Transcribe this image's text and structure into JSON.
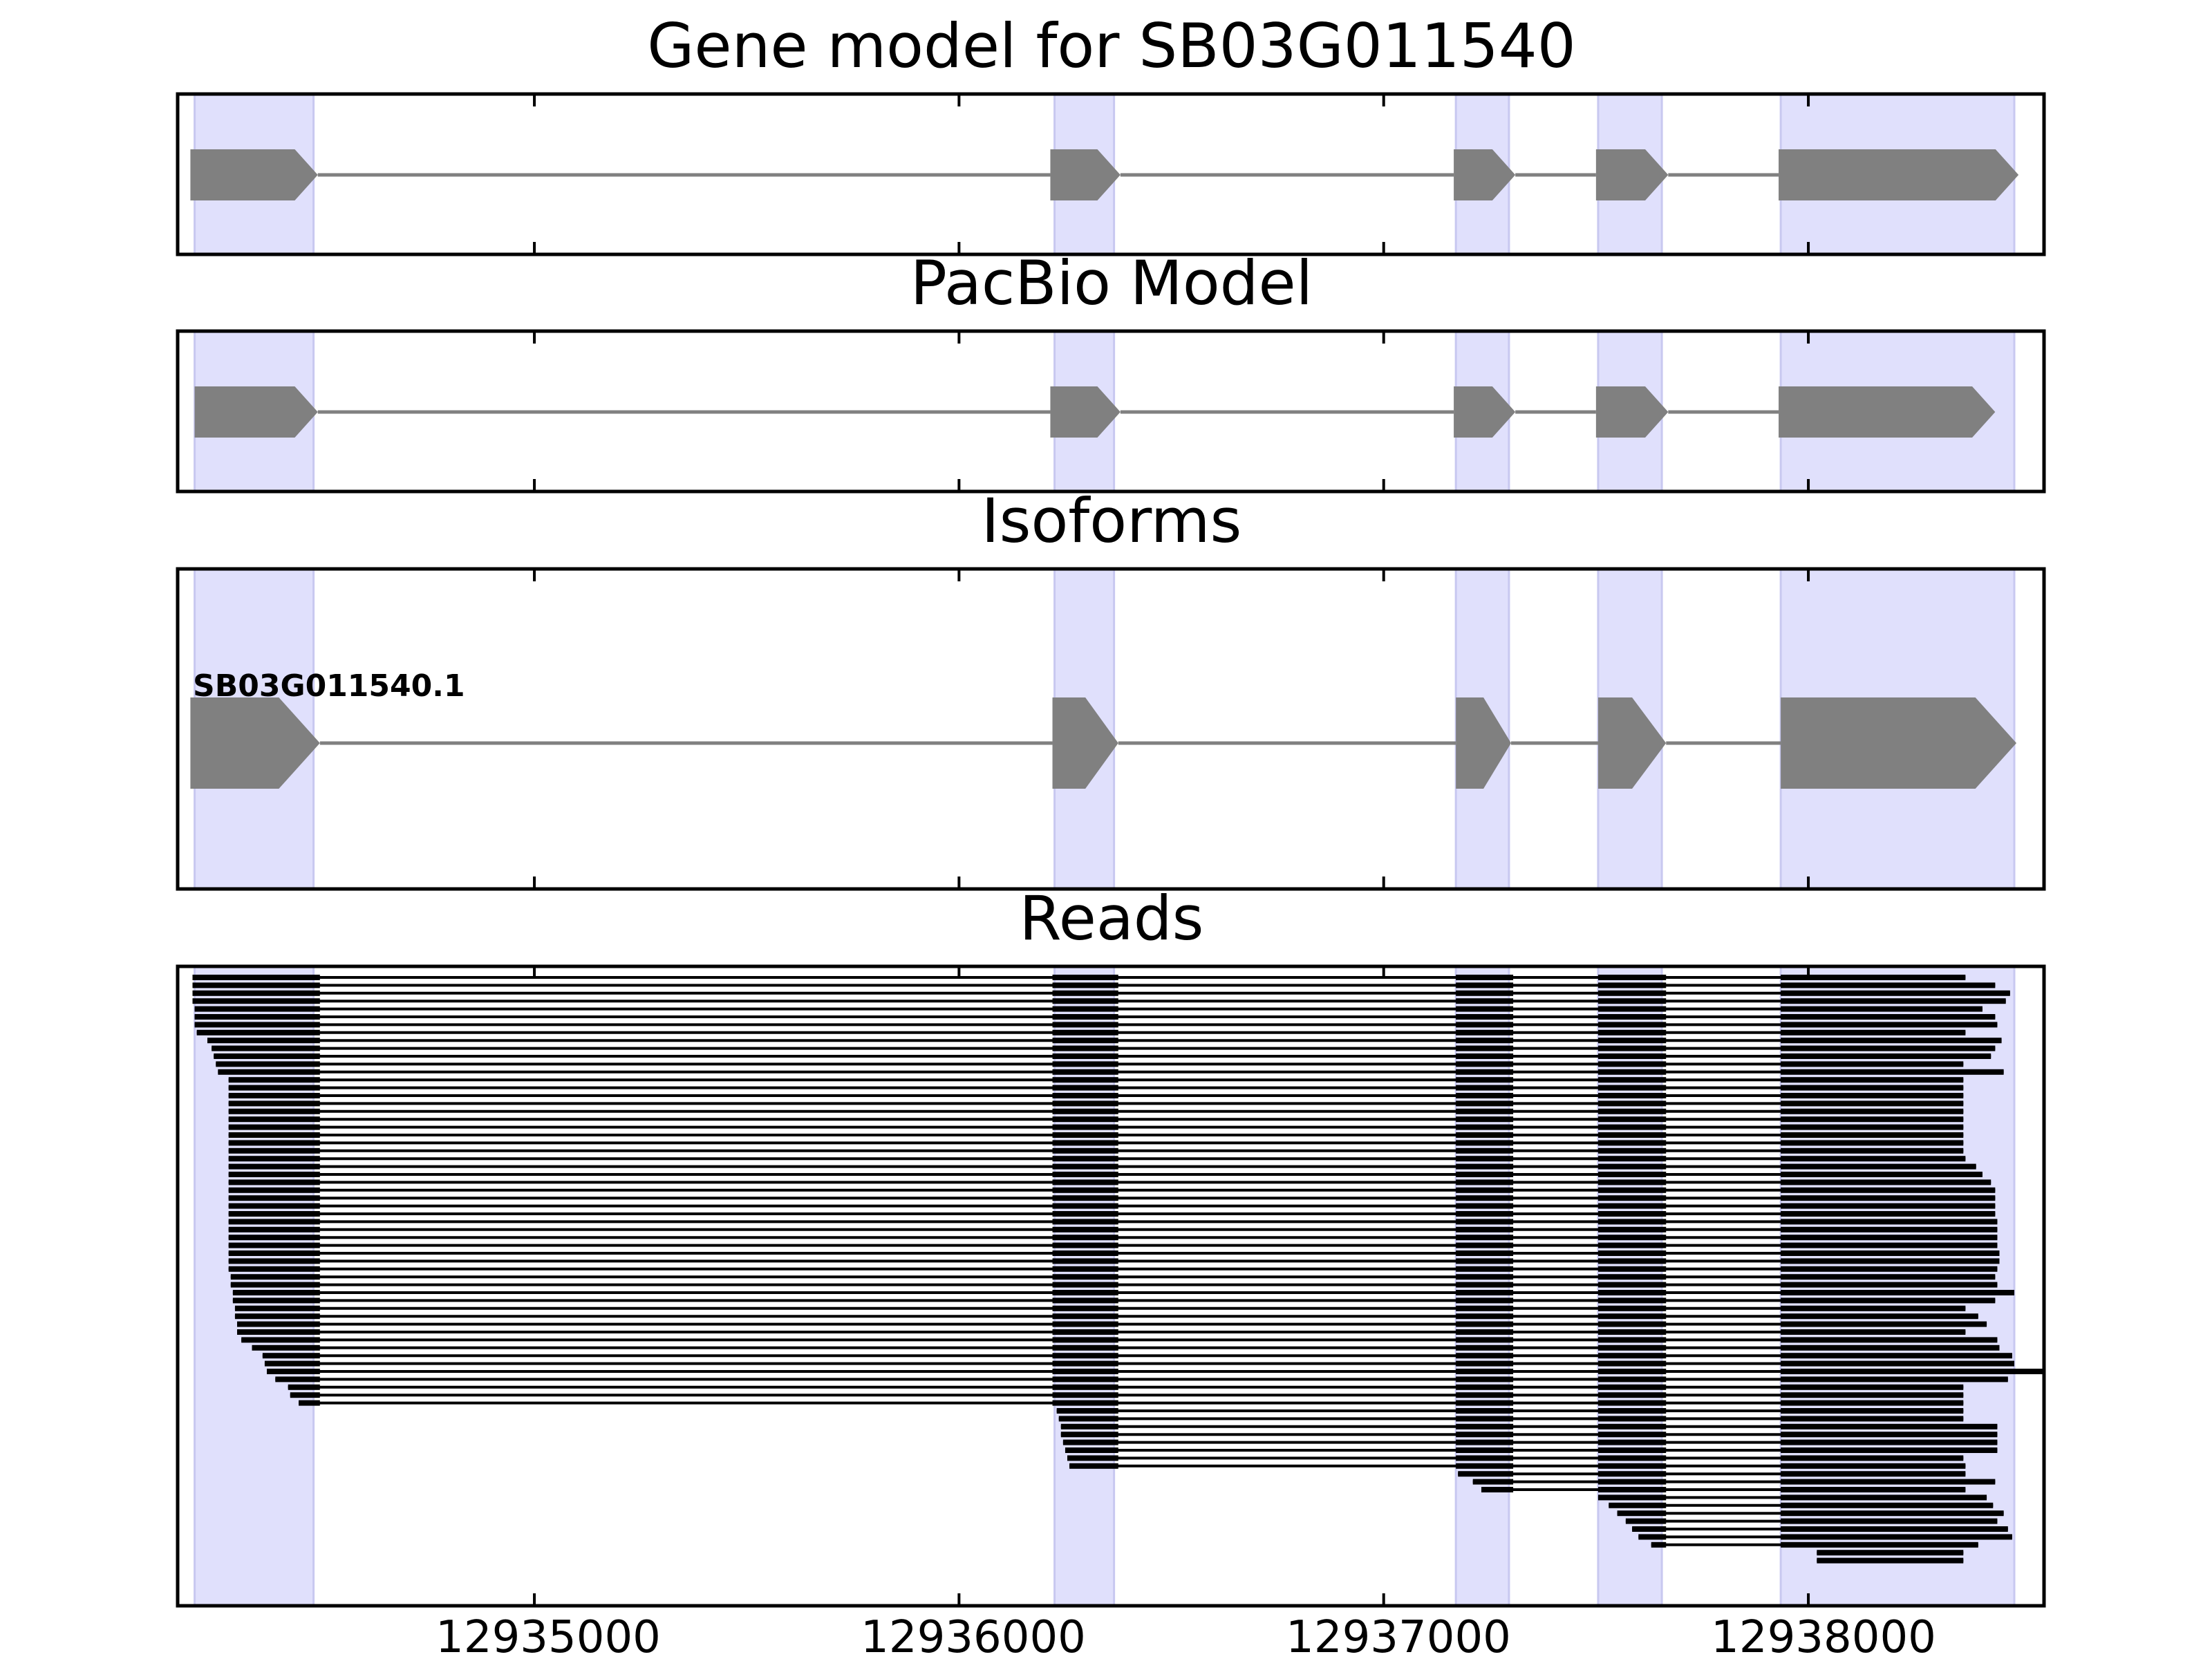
{
  "chart_data": {
    "type": "gene-structure",
    "x_range": [
      12934160,
      12938555
    ],
    "x_ticks": [
      12935000,
      12936000,
      12937000,
      12938000
    ],
    "exon_highlight_color": "#e0e0fc",
    "exon_highlight_edge": "#c8c8f0",
    "feature_color": "#808080",
    "read_color": "#000000",
    "exon_regions": [
      [
        12934200,
        12934480
      ],
      [
        12936225,
        12936365
      ],
      [
        12937170,
        12937295
      ],
      [
        12937505,
        12937655
      ],
      [
        12937935,
        12938485
      ]
    ],
    "panels": [
      {
        "title": "Gene model for SB03G011540",
        "exons": [
          [
            12934190,
            12934490
          ],
          [
            12936215,
            12936380
          ],
          [
            12937165,
            12937310
          ],
          [
            12937500,
            12937670
          ],
          [
            12937930,
            12938495
          ]
        ]
      },
      {
        "title": "PacBio Model",
        "exons": [
          [
            12934200,
            12934490
          ],
          [
            12936215,
            12936380
          ],
          [
            12937165,
            12937310
          ],
          [
            12937500,
            12937670
          ],
          [
            12937930,
            12938440
          ]
        ]
      },
      {
        "title": "Isoforms",
        "isoform_label": "SB03G011540.1",
        "exons": [
          [
            12934190,
            12934495
          ],
          [
            12936220,
            12936375
          ],
          [
            12937170,
            12937300
          ],
          [
            12937505,
            12937665
          ],
          [
            12937935,
            12938490
          ]
        ]
      },
      {
        "title": "Reads",
        "reads": [
          [
            12934195,
            12938370
          ],
          [
            12934195,
            12938440
          ],
          [
            12934195,
            12938475
          ],
          [
            12934195,
            12938465
          ],
          [
            12934200,
            12938410
          ],
          [
            12934200,
            12938440
          ],
          [
            12934200,
            12938445
          ],
          [
            12934205,
            12938370
          ],
          [
            12934230,
            12938455
          ],
          [
            12934240,
            12938440
          ],
          [
            12934245,
            12938430
          ],
          [
            12934250,
            12938365
          ],
          [
            12934255,
            12938460
          ],
          [
            12934280,
            12938365
          ],
          [
            12934280,
            12938365
          ],
          [
            12934280,
            12938365
          ],
          [
            12934280,
            12938365
          ],
          [
            12934280,
            12938365
          ],
          [
            12934280,
            12938365
          ],
          [
            12934280,
            12938365
          ],
          [
            12934280,
            12938365
          ],
          [
            12934280,
            12938365
          ],
          [
            12934280,
            12938365
          ],
          [
            12934280,
            12938370
          ],
          [
            12934280,
            12938395
          ],
          [
            12934280,
            12938410
          ],
          [
            12934280,
            12938430
          ],
          [
            12934280,
            12938440
          ],
          [
            12934280,
            12938440
          ],
          [
            12934280,
            12938440
          ],
          [
            12934280,
            12938440
          ],
          [
            12934280,
            12938445
          ],
          [
            12934280,
            12938445
          ],
          [
            12934280,
            12938445
          ],
          [
            12934280,
            12938445
          ],
          [
            12934280,
            12938450
          ],
          [
            12934280,
            12938450
          ],
          [
            12934280,
            12938445
          ],
          [
            12934285,
            12938440
          ],
          [
            12934285,
            12938445
          ],
          [
            12934290,
            12938485
          ],
          [
            12934290,
            12938440
          ],
          [
            12934295,
            12938370
          ],
          [
            12934295,
            12938400
          ],
          [
            12934300,
            12938420
          ],
          [
            12934300,
            12938370
          ],
          [
            12934310,
            12938445
          ],
          [
            12934335,
            12938450
          ],
          [
            12934360,
            12938480
          ],
          [
            12934365,
            12938485
          ],
          [
            12934370,
            12938555
          ],
          [
            12934390,
            12938470
          ],
          [
            12934420,
            12938365
          ],
          [
            12934425,
            12938365
          ],
          [
            12934445,
            12938365
          ],
          [
            12936230,
            12938365
          ],
          [
            12936235,
            12938365
          ],
          [
            12936240,
            12938445
          ],
          [
            12936240,
            12938445
          ],
          [
            12936245,
            12938445
          ],
          [
            12936250,
            12938445
          ],
          [
            12936255,
            12938365
          ],
          [
            12936260,
            12938370
          ],
          [
            12937175,
            12938370
          ],
          [
            12937210,
            12938440
          ],
          [
            12937230,
            12938370
          ],
          [
            12937505,
            12938420
          ],
          [
            12937530,
            12938435
          ],
          [
            12937550,
            12938460
          ],
          [
            12937570,
            12938445
          ],
          [
            12937585,
            12938470
          ],
          [
            12937600,
            12938480
          ],
          [
            12937630,
            12938400
          ],
          [
            12938020,
            12938365
          ],
          [
            12938020,
            12938365
          ]
        ]
      }
    ]
  }
}
